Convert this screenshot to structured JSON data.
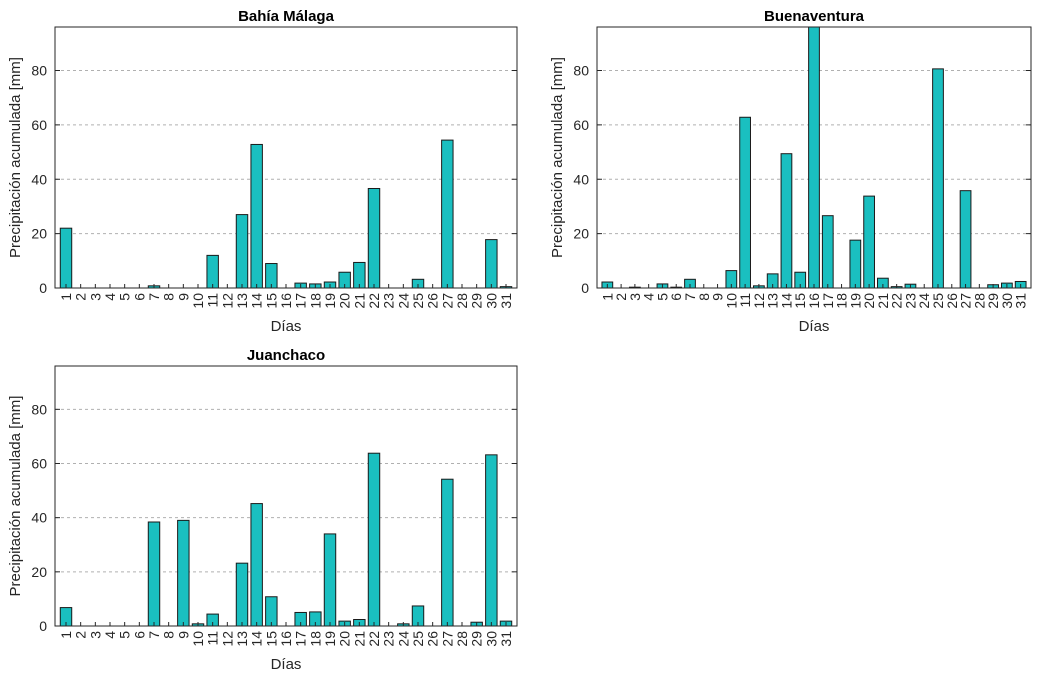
{
  "chart_data": [
    {
      "type": "bar",
      "title": "Bahía Málaga",
      "xlabel": "Días",
      "ylabel": "Precipitación acumulada [mm]",
      "ylim": [
        0,
        96
      ],
      "yticks": [
        0,
        20,
        40,
        60,
        80
      ],
      "grid": "horizontal dashed",
      "categories": [
        "1",
        "2",
        "3",
        "4",
        "5",
        "6",
        "7",
        "8",
        "9",
        "10",
        "11",
        "12",
        "13",
        "14",
        "15",
        "16",
        "17",
        "18",
        "19",
        "20",
        "21",
        "22",
        "23",
        "24",
        "25",
        "26",
        "27",
        "28",
        "29",
        "30",
        "31"
      ],
      "values": [
        22,
        0,
        0,
        0,
        0,
        0,
        0.8,
        0,
        0,
        0,
        12,
        0,
        27,
        52.8,
        9,
        0,
        1.8,
        1.5,
        2.2,
        5.8,
        9.4,
        36.6,
        0,
        0,
        3.2,
        0,
        54.4,
        0,
        0,
        17.8,
        0.5
      ]
    },
    {
      "type": "bar",
      "title": "Buenaventura",
      "xlabel": "Días",
      "ylabel": "Precipitación acumulada [mm]",
      "ylim": [
        0,
        96
      ],
      "yticks": [
        0,
        20,
        40,
        60,
        80
      ],
      "grid": "horizontal dashed",
      "categories": [
        "1",
        "2",
        "3",
        "4",
        "5",
        "6",
        "7",
        "8",
        "9",
        "10",
        "11",
        "12",
        "13",
        "14",
        "15",
        "16",
        "17",
        "18",
        "19",
        "20",
        "21",
        "22",
        "23",
        "24",
        "25",
        "26",
        "27",
        "28",
        "29",
        "30",
        "31"
      ],
      "values": [
        2.2,
        0,
        0.3,
        0,
        1.5,
        0.3,
        3.2,
        0,
        0,
        6.4,
        62.8,
        0.8,
        5.2,
        49.4,
        5.8,
        96,
        26.6,
        0,
        17.6,
        33.8,
        3.6,
        0.5,
        1.4,
        0,
        80.6,
        0,
        35.8,
        0,
        1.2,
        1.8,
        2.4
      ]
    },
    {
      "type": "bar",
      "title": "Juanchaco",
      "xlabel": "Días",
      "ylabel": "Precipitación acumulada [mm]",
      "ylim": [
        0,
        96
      ],
      "yticks": [
        0,
        20,
        40,
        60,
        80
      ],
      "grid": "horizontal dashed",
      "categories": [
        "1",
        "2",
        "3",
        "4",
        "5",
        "6",
        "7",
        "8",
        "9",
        "10",
        "11",
        "12",
        "13",
        "14",
        "15",
        "16",
        "17",
        "18",
        "19",
        "20",
        "21",
        "22",
        "23",
        "24",
        "25",
        "26",
        "27",
        "28",
        "29",
        "30",
        "31"
      ],
      "values": [
        6.8,
        0,
        0,
        0,
        0,
        0,
        38.4,
        0,
        39,
        0.8,
        4.4,
        0,
        23.2,
        45.2,
        10.8,
        0,
        5,
        5.2,
        34,
        1.8,
        2.4,
        63.8,
        0,
        0.8,
        7.4,
        0,
        54.2,
        0,
        1.4,
        63.2,
        1.8
      ]
    }
  ],
  "colors": {
    "bar": "#1abfc0",
    "bar_edge": "#1a1a1a",
    "grid": "#b0b0b0",
    "axis": "#262626"
  }
}
